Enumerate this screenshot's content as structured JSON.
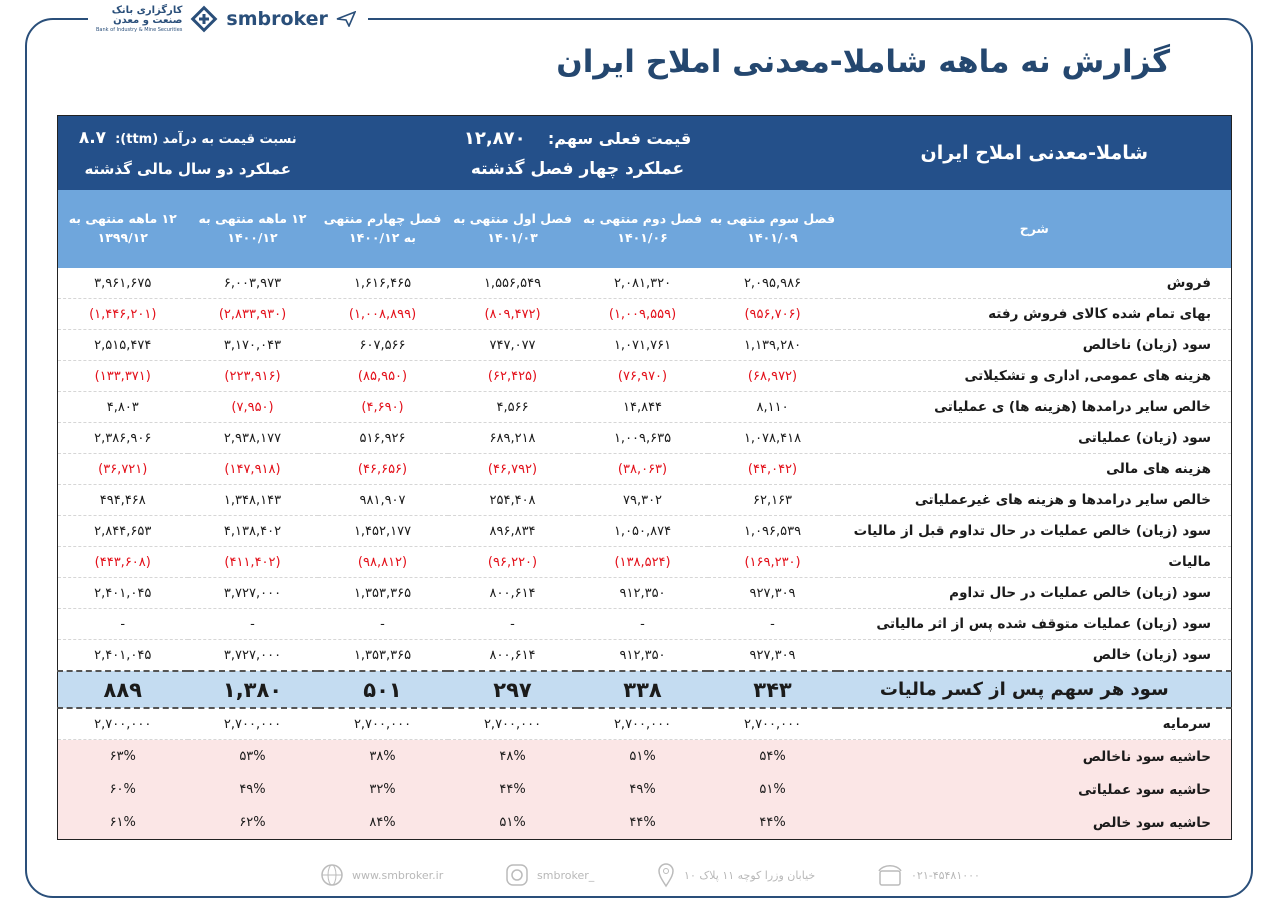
{
  "header": {
    "brand": "smbroker",
    "bank_name_1": "کارگزاری بانک",
    "bank_name_2": "صنعت و معدن",
    "bank_name_en": "Bank of Industry & Mine Securities",
    "title": "گزارش نه ماهه شاملا-معدنی املاح  ایران"
  },
  "table": {
    "company": "شاملا-معدنی املاح  ایران",
    "price_label": "قیمت فعلی سهم:",
    "price": "۱۲,۸۷۰",
    "pe_label": "نسبت  قیمت به درآمد (ttm):",
    "pe": "۸.۷",
    "group_quarters": "عملکرد چهار فصل گذشته",
    "group_years": "عملکرد دو سال مالی گذشته",
    "columns": [
      "شرح",
      "فصل سوم منتهی به ۱۴۰۱/۰۹",
      "فصل دوم منتهی به ۱۴۰۱/۰۶",
      "فصل اول منتهی به ۱۴۰۱/۰۳",
      "فصل چهارم منتهی به ۱۴۰۰/۱۲",
      "۱۲ ماهه منتهی به ۱۴۰۰/۱۲",
      "۱۲ ماهه منتهی به ۱۳۹۹/۱۲"
    ],
    "rows": [
      [
        "فروش",
        "۲,۰۹۵,۹۸۶",
        "۲,۰۸۱,۳۲۰",
        "۱,۵۵۶,۵۴۹",
        "۱,۶۱۶,۴۶۵",
        "۶,۰۰۳,۹۷۳",
        "۳,۹۶۱,۶۷۵"
      ],
      [
        "بهای تمام شده کالای فروش رفته",
        "(۹۵۶,۷۰۶)",
        "(۱,۰۰۹,۵۵۹)",
        "(۸۰۹,۴۷۲)",
        "(۱,۰۰۸,۸۹۹)",
        "(۲,۸۳۳,۹۳۰)",
        "(۱,۴۴۶,۲۰۱)"
      ],
      [
        "سود (زیان) ناخالص",
        "۱,۱۳۹,۲۸۰",
        "۱,۰۷۱,۷۶۱",
        "۷۴۷,۰۷۷",
        "۶۰۷,۵۶۶",
        "۳,۱۷۰,۰۴۳",
        "۲,۵۱۵,۴۷۴"
      ],
      [
        "هزینه های عمومی, اداری و تشکیلاتی",
        "(۶۸,۹۷۲)",
        "(۷۶,۹۷۰)",
        "(۶۲,۴۲۵)",
        "(۸۵,۹۵۰)",
        "(۲۲۳,۹۱۶)",
        "(۱۳۳,۳۷۱)"
      ],
      [
        "خالص سایر درامدها (هزینه ها) ی عملیاتی",
        "۸,۱۱۰",
        "۱۴,۸۴۴",
        "۴,۵۶۶",
        "(۴,۶۹۰)",
        "(۷,۹۵۰)",
        "۴,۸۰۳"
      ],
      [
        "سود (زیان) عملیاتی",
        "۱,۰۷۸,۴۱۸",
        "۱,۰۰۹,۶۳۵",
        "۶۸۹,۲۱۸",
        "۵۱۶,۹۲۶",
        "۲,۹۳۸,۱۷۷",
        "۲,۳۸۶,۹۰۶"
      ],
      [
        "هزینه های مالی",
        "(۴۴,۰۴۲)",
        "(۳۸,۰۶۳)",
        "(۴۶,۷۹۲)",
        "(۴۶,۶۵۶)",
        "(۱۴۷,۹۱۸)",
        "(۳۶,۷۲۱)"
      ],
      [
        "خالص سایر درامدها و هزینه های غیرعملیاتی",
        "۶۲,۱۶۳",
        "۷۹,۳۰۲",
        "۲۵۴,۴۰۸",
        "۹۸۱,۹۰۷",
        "۱,۳۴۸,۱۴۳",
        "۴۹۴,۴۶۸"
      ],
      [
        "سود (زیان) خالص عملیات در حال تداوم قبل از مالیات",
        "۱,۰۹۶,۵۳۹",
        "۱,۰۵۰,۸۷۴",
        "۸۹۶,۸۳۴",
        "۱,۴۵۲,۱۷۷",
        "۴,۱۳۸,۴۰۲",
        "۲,۸۴۴,۶۵۳"
      ],
      [
        "مالیات",
        "(۱۶۹,۲۳۰)",
        "(۱۳۸,۵۲۴)",
        "(۹۶,۲۲۰)",
        "(۹۸,۸۱۲)",
        "(۴۱۱,۴۰۲)",
        "(۴۴۳,۶۰۸)"
      ],
      [
        "سود (زیان) خالص عملیات در حال تداوم",
        "۹۲۷,۳۰۹",
        "۹۱۲,۳۵۰",
        "۸۰۰,۶۱۴",
        "۱,۳۵۳,۳۶۵",
        "۳,۷۲۷,۰۰۰",
        "۲,۴۰۱,۰۴۵"
      ],
      [
        "سود (زیان) عملیات متوقف شده پس از اثر مالیاتی",
        "-",
        "-",
        "-",
        "-",
        "-",
        "-"
      ],
      [
        "سود (زیان) خالص",
        "۹۲۷,۳۰۹",
        "۹۱۲,۳۵۰",
        "۸۰۰,۶۱۴",
        "۱,۳۵۳,۳۶۵",
        "۳,۷۲۷,۰۰۰",
        "۲,۴۰۱,۰۴۵"
      ]
    ],
    "eps_row": [
      "سود هر سهم پس از کسر مالیات",
      "۳۴۳",
      "۳۳۸",
      "۲۹۷",
      "۵۰۱",
      "۱,۳۸۰",
      "۸۸۹"
    ],
    "capital_row": [
      "سرمایه",
      "۲,۷۰۰,۰۰۰",
      "۲,۷۰۰,۰۰۰",
      "۲,۷۰۰,۰۰۰",
      "۲,۷۰۰,۰۰۰",
      "۲,۷۰۰,۰۰۰",
      "۲,۷۰۰,۰۰۰"
    ],
    "margin_rows": [
      [
        "حاشیه سود ناخالص",
        "۵۴%",
        "۵۱%",
        "۴۸%",
        "۳۸%",
        "۵۳%",
        "۶۳%"
      ],
      [
        "حاشیه سود عملیاتی",
        "۵۱%",
        "۴۹%",
        "۴۴%",
        "۳۲%",
        "۴۹%",
        "۶۰%"
      ],
      [
        "حاشیه سود خالص",
        "۴۴%",
        "۴۴%",
        "۵۱%",
        "۸۴%",
        "۶۲%",
        "۶۱%"
      ]
    ]
  },
  "footer": {
    "phone": "۰۲۱-۴۵۴۸۱۰۰۰",
    "address": "خیابان وزرا کوچه ۱۱ پلاک ۱۰",
    "instagram": "smbroker_",
    "website": "www.smbroker.ir"
  }
}
